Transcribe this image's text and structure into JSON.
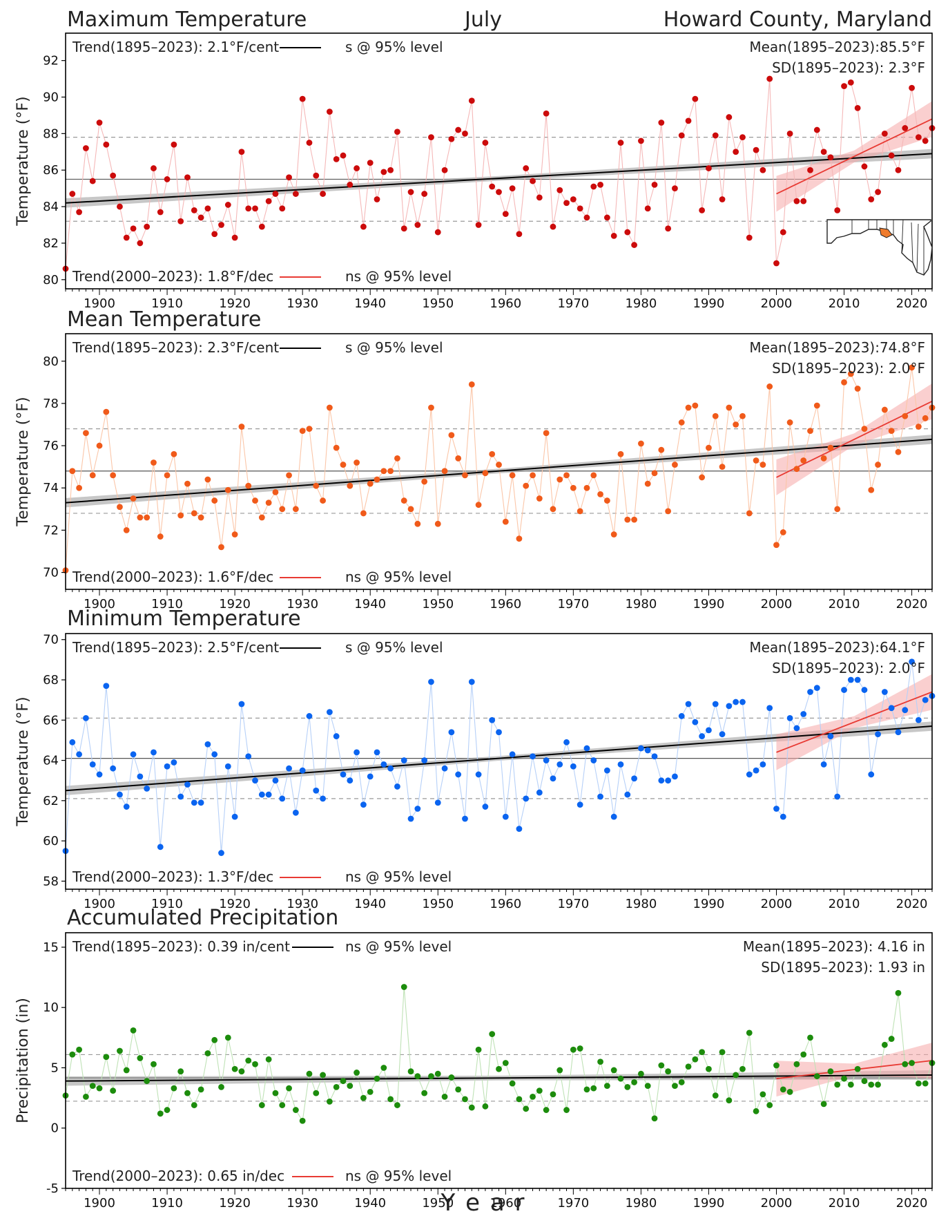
{
  "header": {
    "variable_title": "Maximum Temperature",
    "month": "July",
    "location": "Howard County, Maryland"
  },
  "x_axis_label": "Y e a r",
  "colors": {
    "trend_long": "#000000",
    "trend_recent": "#e83a33",
    "band_long": "#999999",
    "band_recent": "#f6a8a8",
    "mean_line": "#555555",
    "sd_line": "#999999",
    "map_outline": "#222222",
    "map_fill": "#ffffff",
    "map_highlight": "#ef7b2c"
  },
  "chart_data": [
    {
      "type": "line",
      "title": "Maximum Temperature",
      "ylabel": "Temperature (°F)",
      "xlim": [
        1895,
        2023
      ],
      "ylim": [
        79.5,
        93.5
      ],
      "yticks": [
        80,
        82,
        84,
        86,
        88,
        90,
        92
      ],
      "xticks": [
        1900,
        1910,
        1920,
        1930,
        1940,
        1950,
        1960,
        1970,
        1980,
        1990,
        2000,
        2010,
        2020
      ],
      "grid": false,
      "color": "#cc0b0b",
      "line_color": "#f5b8b8",
      "x_start": 1895,
      "values": [
        80.6,
        84.7,
        83.7,
        87.2,
        85.4,
        88.6,
        87.4,
        85.7,
        84.0,
        82.3,
        82.8,
        82.0,
        82.9,
        86.1,
        83.7,
        85.5,
        87.4,
        83.2,
        85.6,
        83.8,
        83.4,
        83.9,
        82.5,
        83.0,
        84.1,
        82.3,
        87.0,
        83.9,
        83.9,
        82.9,
        84.3,
        84.7,
        83.9,
        85.6,
        84.7,
        89.9,
        87.5,
        85.7,
        84.7,
        89.2,
        86.6,
        86.8,
        85.2,
        86.1,
        82.9,
        86.4,
        84.4,
        85.9,
        86.0,
        88.1,
        82.8,
        84.8,
        83.0,
        84.7,
        87.8,
        82.6,
        86.0,
        87.7,
        88.2,
        88.0,
        89.8,
        83.0,
        87.5,
        85.1,
        84.8,
        83.6,
        85.0,
        82.5,
        86.1,
        85.4,
        84.5,
        89.1,
        82.9,
        84.9,
        84.2,
        84.4,
        83.9,
        83.4,
        85.1,
        85.2,
        83.4,
        82.4,
        87.5,
        82.6,
        81.9,
        87.6,
        83.9,
        85.2,
        88.6,
        82.8,
        85.0,
        87.9,
        88.7,
        89.9,
        83.8,
        86.1,
        87.9,
        84.4,
        88.9,
        87.0,
        87.8,
        82.3,
        87.1,
        86.0,
        91.0,
        80.9,
        82.6,
        88.0,
        84.3,
        84.3,
        86.0,
        88.2,
        87.0,
        86.7,
        83.8,
        90.6,
        90.8,
        89.4,
        86.2,
        84.4,
        84.8,
        88.0,
        86.8,
        86.0,
        88.3,
        90.5,
        87.8,
        87.6,
        88.3
      ],
      "mean": 85.5,
      "sd": 2.3,
      "mean_label": "Mean(1895–2023):85.5°F",
      "sd_label": "SD(1895–2023): 2.3°F",
      "trend_long": {
        "label": "Trend(1895–2023):  2.1°F/cent",
        "sig": "s @ 95% level",
        "y_start": 84.2,
        "y_end": 86.9
      },
      "trend_recent": {
        "label": "Trend(2000–2023):  1.8°F/dec",
        "sig": "ns @ 95% level",
        "y_start": 84.7,
        "y_end": 88.8
      }
    },
    {
      "type": "line",
      "title": "Mean Temperature",
      "ylabel": "Temperature (°F)",
      "xlim": [
        1895,
        2023
      ],
      "ylim": [
        69.2,
        81.3
      ],
      "yticks": [
        70,
        72,
        74,
        76,
        78,
        80
      ],
      "xticks": [
        1900,
        1910,
        1920,
        1930,
        1940,
        1950,
        1960,
        1970,
        1980,
        1990,
        2000,
        2010,
        2020
      ],
      "grid": false,
      "color": "#f05a1a",
      "line_color": "#fbc6a8",
      "x_start": 1895,
      "values": [
        70.1,
        74.8,
        74.0,
        76.6,
        74.6,
        76.0,
        77.6,
        74.6,
        73.1,
        72.0,
        73.5,
        72.6,
        72.6,
        75.2,
        71.7,
        74.6,
        75.6,
        72.7,
        74.2,
        72.8,
        72.6,
        74.4,
        73.4,
        71.2,
        73.9,
        71.8,
        76.9,
        74.1,
        73.4,
        72.6,
        73.3,
        73.8,
        73.0,
        74.6,
        73.0,
        76.7,
        76.8,
        74.1,
        73.4,
        77.8,
        75.9,
        75.1,
        74.1,
        75.2,
        72.8,
        74.2,
        74.4,
        74.8,
        74.8,
        75.4,
        73.4,
        73.0,
        72.3,
        74.3,
        77.8,
        72.3,
        74.8,
        76.5,
        75.4,
        74.6,
        78.9,
        73.2,
        74.7,
        75.6,
        75.1,
        72.4,
        74.6,
        71.6,
        74.1,
        74.6,
        73.5,
        76.6,
        73.0,
        74.4,
        74.6,
        74.0,
        72.9,
        74.0,
        74.6,
        73.7,
        73.4,
        71.8,
        75.6,
        72.5,
        72.5,
        76.1,
        74.2,
        74.7,
        75.8,
        72.9,
        75.1,
        77.1,
        77.8,
        77.9,
        74.5,
        75.9,
        77.4,
        75.0,
        77.8,
        77.0,
        77.4,
        72.8,
        75.3,
        75.1,
        78.8,
        71.3,
        71.9,
        77.1,
        74.9,
        75.3,
        76.7,
        77.9,
        75.4,
        75.9,
        73.0,
        79.0,
        79.4,
        78.7,
        76.8,
        73.9,
        75.1,
        77.7,
        76.7,
        75.7,
        77.4,
        79.7,
        76.9,
        77.3,
        77.8
      ],
      "mean": 74.8,
      "sd": 2.0,
      "mean_label": "Mean(1895–2023):74.8°F",
      "sd_label": "SD(1895–2023): 2.0°F",
      "trend_long": {
        "label": "Trend(1895–2023):  2.3°F/cent",
        "sig": "s @ 95% level",
        "y_start": 73.3,
        "y_end": 76.3
      },
      "trend_recent": {
        "label": "Trend(2000–2023):  1.6°F/dec",
        "sig": "ns @ 95% level",
        "y_start": 74.5,
        "y_end": 78.1
      }
    },
    {
      "type": "line",
      "title": "Minimum Temperature",
      "ylabel": "Temperature (°F)",
      "xlim": [
        1895,
        2023
      ],
      "ylim": [
        57.6,
        70.3
      ],
      "yticks": [
        58,
        60,
        62,
        64,
        66,
        68,
        70
      ],
      "xticks": [
        1900,
        1910,
        1920,
        1930,
        1940,
        1950,
        1960,
        1970,
        1980,
        1990,
        2000,
        2010,
        2020
      ],
      "grid": false,
      "color": "#0a64f0",
      "line_color": "#b6d0f8",
      "x_start": 1895,
      "values": [
        59.5,
        64.9,
        64.3,
        66.1,
        63.8,
        63.3,
        67.7,
        63.6,
        62.3,
        61.7,
        64.3,
        63.2,
        62.6,
        64.4,
        59.7,
        63.7,
        63.9,
        62.2,
        62.8,
        61.9,
        61.9,
        64.8,
        64.3,
        59.4,
        63.7,
        61.2,
        66.8,
        64.2,
        63.0,
        62.3,
        62.3,
        63.0,
        62.1,
        63.6,
        61.4,
        63.5,
        66.2,
        62.5,
        62.1,
        66.4,
        65.2,
        63.3,
        63.0,
        64.4,
        61.8,
        63.2,
        64.4,
        63.8,
        63.6,
        62.7,
        64.0,
        61.1,
        61.6,
        64.0,
        67.9,
        61.9,
        63.6,
        65.4,
        63.3,
        61.1,
        67.9,
        63.3,
        61.7,
        66.0,
        65.4,
        61.2,
        64.3,
        60.6,
        62.1,
        64.2,
        62.4,
        64.0,
        63.1,
        63.8,
        64.9,
        63.7,
        61.8,
        64.6,
        64.0,
        62.2,
        63.5,
        61.2,
        63.8,
        62.3,
        63.1,
        64.6,
        64.5,
        64.2,
        63.0,
        63.0,
        63.2,
        66.2,
        66.8,
        65.9,
        65.2,
        65.5,
        66.8,
        65.3,
        66.7,
        66.9,
        66.9,
        63.3,
        63.5,
        63.8,
        66.6,
        61.6,
        61.2,
        66.1,
        65.6,
        66.3,
        67.4,
        67.6,
        63.8,
        65.2,
        62.2,
        67.5,
        68.0,
        68.0,
        67.5,
        63.3,
        65.3,
        67.4,
        66.6,
        65.4,
        66.5,
        68.9,
        66.0,
        67.0,
        67.2
      ],
      "mean": 64.1,
      "sd": 2.0,
      "mean_label": "Mean(1895–2023):64.1°F",
      "sd_label": "SD(1895–2023): 2.0°F",
      "trend_long": {
        "label": "Trend(1895–2023):  2.5°F/cent",
        "sig": "s @ 95% level",
        "y_start": 62.5,
        "y_end": 65.7
      },
      "trend_recent": {
        "label": "Trend(2000–2023):  1.3°F/dec",
        "sig": "ns @ 95% level",
        "y_start": 64.4,
        "y_end": 67.4
      }
    },
    {
      "type": "line",
      "title": "Accumulated Precipitation",
      "ylabel": "Precipitation (in)",
      "xlim": [
        1895,
        2023
      ],
      "ylim": [
        -5,
        16.2
      ],
      "yticks": [
        -5,
        0,
        5,
        10,
        15
      ],
      "xticks": [
        1900,
        1910,
        1920,
        1930,
        1940,
        1950,
        1960,
        1970,
        1980,
        1990,
        2000,
        2010,
        2020
      ],
      "grid": false,
      "color": "#1c8c0c",
      "line_color": "#bfe2b6",
      "x_start": 1895,
      "values": [
        2.7,
        6.1,
        6.5,
        2.6,
        3.5,
        3.3,
        5.9,
        3.1,
        6.4,
        4.8,
        8.1,
        5.8,
        3.9,
        5.3,
        1.2,
        1.5,
        3.3,
        4.7,
        2.9,
        1.9,
        3.2,
        6.2,
        7.3,
        3.4,
        7.5,
        4.9,
        4.7,
        5.6,
        5.3,
        1.9,
        5.7,
        2.9,
        1.9,
        3.3,
        1.5,
        0.6,
        4.5,
        2.9,
        4.4,
        2.2,
        3.4,
        3.9,
        3.5,
        4.6,
        2.5,
        3.0,
        4.1,
        5.0,
        2.4,
        1.9,
        11.7,
        4.7,
        4.3,
        2.9,
        4.3,
        4.5,
        2.6,
        4.2,
        3.2,
        2.4,
        1.7,
        6.5,
        1.8,
        7.8,
        4.9,
        5.4,
        3.7,
        2.4,
        1.6,
        2.6,
        3.1,
        1.5,
        2.8,
        4.8,
        1.5,
        6.5,
        6.6,
        3.2,
        3.3,
        5.5,
        3.5,
        4.8,
        4.1,
        3.4,
        3.8,
        4.5,
        3.5,
        0.8,
        5.2,
        4.7,
        3.5,
        3.8,
        5.1,
        5.7,
        6.3,
        4.9,
        2.7,
        6.3,
        2.3,
        4.4,
        4.9,
        7.9,
        1.4,
        2.8,
        1.9,
        5.2,
        3.2,
        3.0,
        5.3,
        6.1,
        7.5,
        4.3,
        2.0,
        4.7,
        3.6,
        4.1,
        3.6,
        4.9,
        3.9,
        3.6,
        3.6,
        6.9,
        7.4,
        11.2,
        5.3,
        5.4,
        3.7,
        3.7,
        5.4
      ],
      "mean": 4.16,
      "sd": 1.93,
      "mean_label": "Mean(1895–2023): 4.16 in",
      "sd_label": "SD(1895–2023): 1.93 in",
      "trend_long": {
        "label": "Trend(1895–2023):  0.39 in/cent",
        "sig": "ns @ 95% level",
        "y_start": 3.9,
        "y_end": 4.4
      },
      "trend_recent": {
        "label": "Trend(2000–2023):  0.65 in/dec",
        "sig": "ns @ 95% level",
        "y_start": 4.1,
        "y_end": 5.6
      }
    }
  ]
}
